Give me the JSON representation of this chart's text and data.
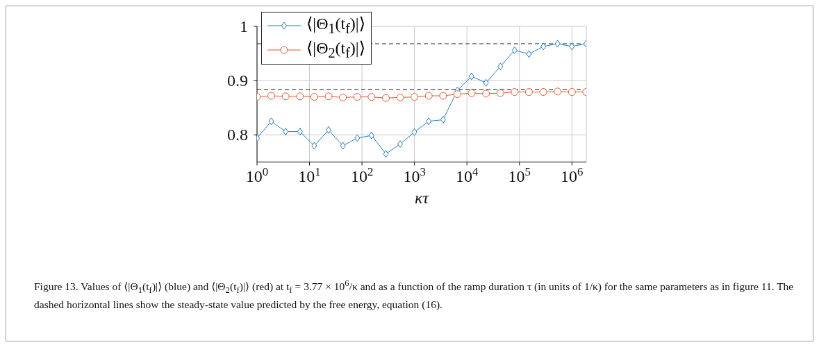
{
  "chart_data": {
    "type": "line",
    "xlabel": "κτ",
    "log": "x",
    "xlim": [
      1,
      1880000
    ],
    "xticks": [
      {
        "value": 1,
        "label": "10$^{0}$"
      },
      {
        "value": 10,
        "label": "10$^{1}$"
      },
      {
        "value": 100,
        "label": "10$^{2}$"
      },
      {
        "value": 1000,
        "label": "10$^{3}$"
      },
      {
        "value": 10000,
        "label": "10$^{4}$"
      },
      {
        "value": 100000,
        "label": "10$^{5}$"
      },
      {
        "value": 1000000,
        "label": "10$^{6}$"
      }
    ],
    "ylim": [
      0.75,
      1
    ],
    "yticks": [
      {
        "value": 0.8,
        "label": "0.8"
      },
      {
        "value": 0.9,
        "label": "0.9"
      },
      {
        "value": 1,
        "label": "1"
      }
    ],
    "grid": true,
    "legend": "top left",
    "series": [
      {
        "name": "⟨|Θ$_{1}$(t$_{f}$)|⟩",
        "color": "#1f7bd0",
        "marker": "diamond",
        "x": [
          1,
          1.87,
          3.51,
          6.58,
          12.3,
          23.1,
          43.3,
          81.1,
          152,
          285,
          534,
          1000,
          1870,
          3510,
          6580,
          12300,
          23100,
          43300,
          81100,
          152000,
          285000,
          534000,
          1000000,
          1870000
        ],
        "values": [
          0.794,
          0.825,
          0.806,
          0.806,
          0.78,
          0.809,
          0.78,
          0.794,
          0.799,
          0.765,
          0.783,
          0.805,
          0.825,
          0.828,
          0.882,
          0.908,
          0.896,
          0.926,
          0.956,
          0.949,
          0.963,
          0.968,
          0.963,
          0.968
        ]
      },
      {
        "name": "⟨|Θ$_{2}$(t$_{f}$)|⟩",
        "color": "#e5572b",
        "marker": "circle",
        "x": [
          1,
          1.87,
          3.51,
          6.58,
          12.3,
          23.1,
          43.3,
          81.1,
          152,
          285,
          534,
          1000,
          1870,
          3510,
          6580,
          12300,
          23100,
          43300,
          81100,
          152000,
          285000,
          534000,
          1000000,
          1870000
        ],
        "values": [
          0.87,
          0.872,
          0.871,
          0.871,
          0.87,
          0.871,
          0.869,
          0.87,
          0.87,
          0.868,
          0.869,
          0.87,
          0.872,
          0.872,
          0.875,
          0.877,
          0.876,
          0.877,
          0.879,
          0.879,
          0.879,
          0.88,
          0.879,
          0.879
        ]
      }
    ],
    "ref_lines": [
      {
        "axis": "y",
        "value": 0.968,
        "color": "#222222",
        "line_style": "dashed"
      },
      {
        "axis": "y",
        "value": 0.884,
        "color": "#222222",
        "line_style": "dashed"
      }
    ],
    "annotations": [
      "Figure 13. Values of ⟨|Θ$_{1}$(t$_{f}$)|⟩ (blue) and ⟨|Θ$_{2}$(t$_{f}$)|⟩ (red) at t$_{f}$ = 3.77 × 10$^{6}$/κ and as a function of the ramp duration τ (in units of 1/κ) for the same parameters as in figure 11. The dashed horizontal lines show the steady-state value predicted by the free energy, equation (16)."
    ]
  }
}
